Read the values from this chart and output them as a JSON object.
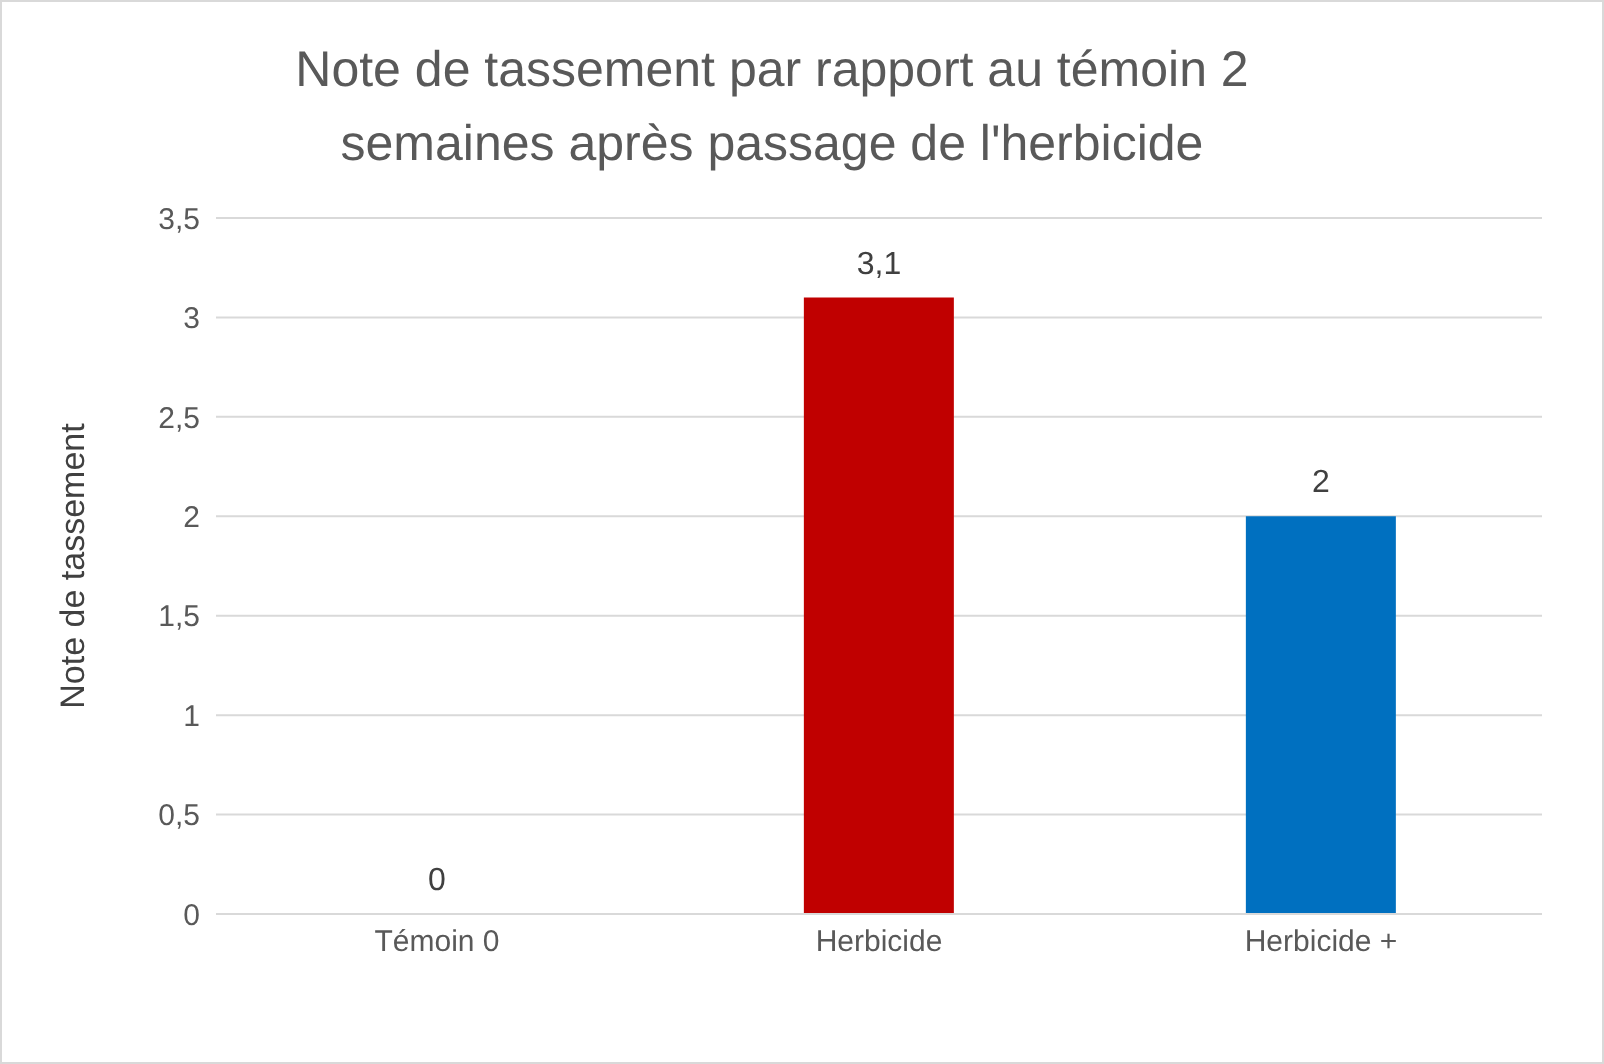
{
  "chart_data": {
    "type": "bar",
    "title": "Note de tassement par rapport au témoin 2 semaines après passage de l'herbicide",
    "ylabel": "Note de tassement",
    "categories": [
      "Témoin 0",
      "Herbicide",
      "Herbicide +"
    ],
    "values": [
      0,
      3.1,
      2
    ],
    "colors": [
      "#7f7f7f",
      "#c00000",
      "#0070c0"
    ],
    "value_labels": [
      "0",
      "3,1",
      "2"
    ],
    "ylim": [
      0,
      3.5
    ],
    "yticks": [
      0,
      {
        "value": 0.5,
        "label": "0,5"
      },
      1,
      {
        "value": 1.5,
        "label": "1,5"
      },
      2,
      {
        "value": 2.5,
        "label": "2,5"
      },
      3,
      {
        "value": 3.5,
        "label": "3,5"
      }
    ],
    "grid": "y"
  }
}
